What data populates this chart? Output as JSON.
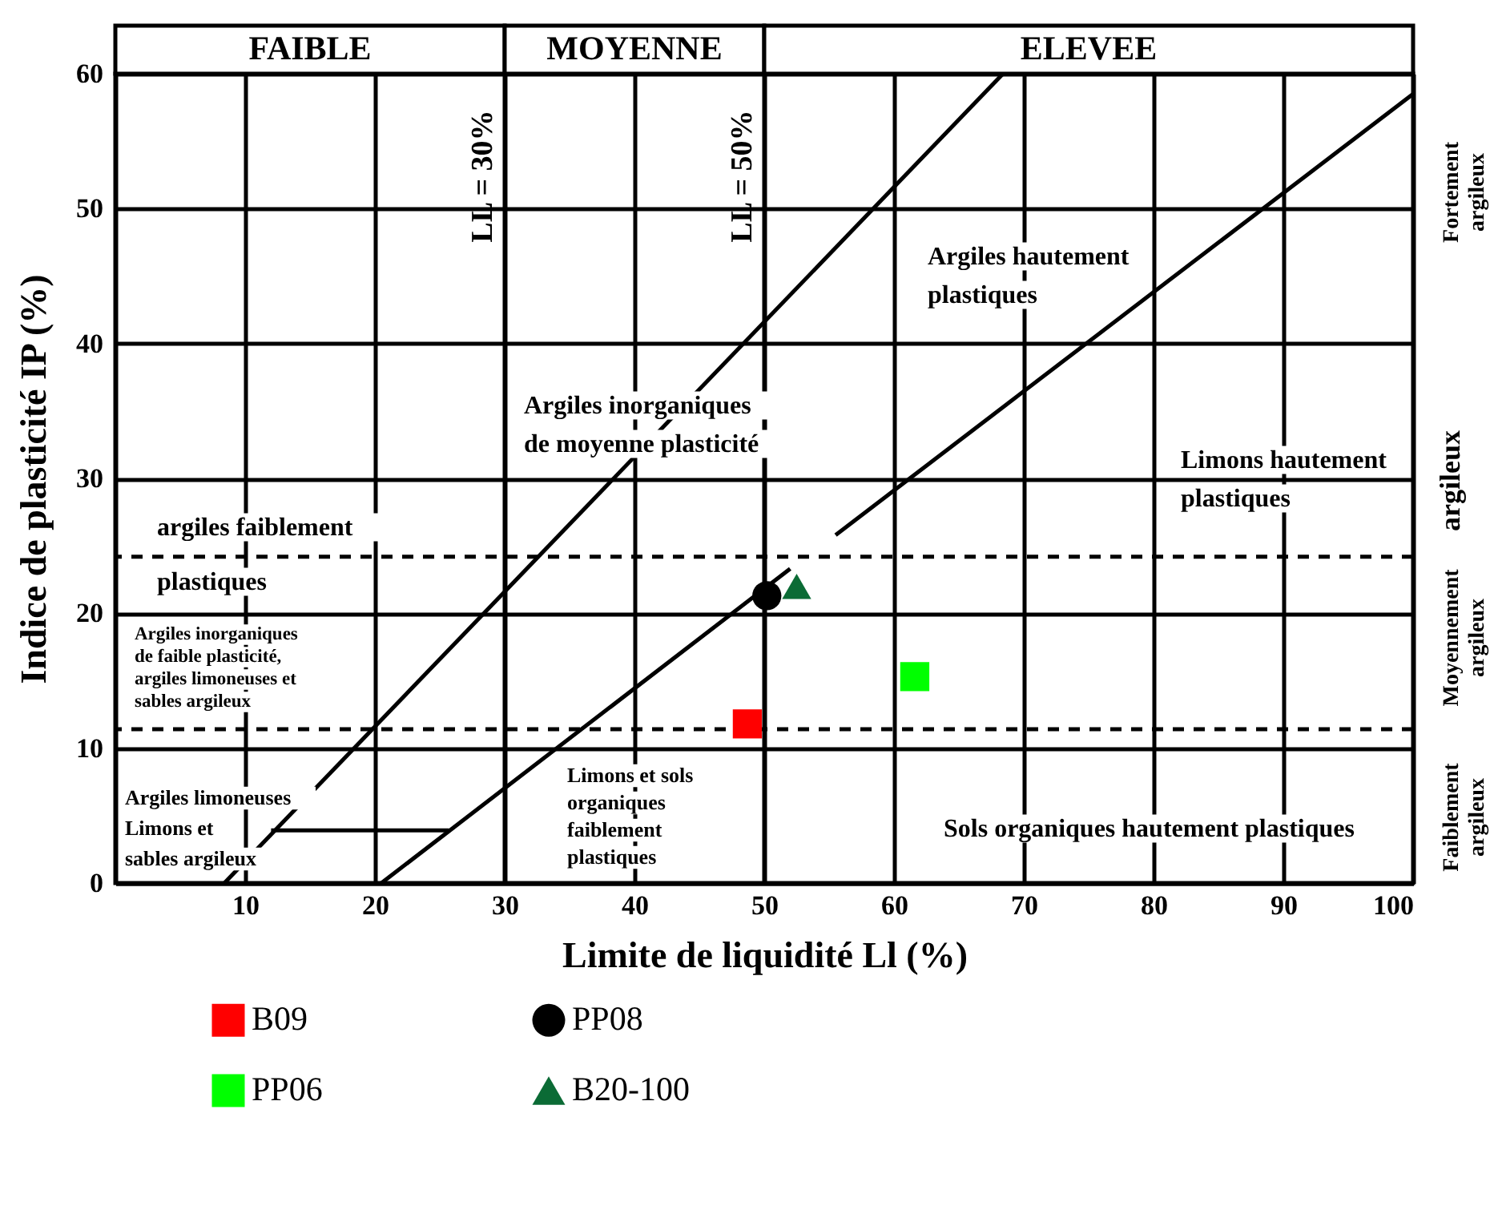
{
  "chart_data": {
    "type": "scatter",
    "xlabel": "Limite de liquidité Ll (%)",
    "ylabel": "Indice de plasticité IP (%)",
    "xlim": [
      0,
      100
    ],
    "ylim": [
      0,
      60
    ],
    "xticks": [
      10,
      20,
      30,
      40,
      50,
      60,
      70,
      80,
      90,
      100
    ],
    "yticks": [
      0,
      10,
      20,
      30,
      40,
      50,
      60
    ],
    "grid": true,
    "legend": "bottom left",
    "series": [
      {
        "type": "line",
        "color": "#000000",
        "x": [
          8.4,
          68.4
        ],
        "values": [
          0,
          60
        ]
      },
      {
        "type": "line",
        "color": "#000000",
        "x": [
          20.5,
          52
        ],
        "values": [
          0,
          23.3
        ]
      },
      {
        "type": "line",
        "color": "#000000",
        "x": [
          55.5,
          100
        ],
        "values": [
          25.8,
          58.5
        ]
      },
      {
        "type": "line",
        "color": "#000000",
        "x": [
          12,
          25.7
        ],
        "values": [
          3.9,
          3.9
        ]
      },
      {
        "name": "B09",
        "marker": "square",
        "color": "#ff0000",
        "x": [
          48.7
        ],
        "values": [
          11.8
        ]
      },
      {
        "name": "PP06",
        "marker": "square",
        "color": "#00ff00",
        "x": [
          61.6
        ],
        "values": [
          15.3
        ]
      },
      {
        "name": "PP08",
        "marker": "circle",
        "color": "#000000",
        "x": [
          50.2
        ],
        "values": [
          21.3
        ]
      },
      {
        "name": "B20-100",
        "marker": "triangle",
        "color": "#0b6b35",
        "x": [
          52.5
        ],
        "values": [
          22.0
        ]
      }
    ],
    "ref_lines": [
      {
        "axis": "x",
        "value": 30,
        "label": "LL = 30%"
      },
      {
        "axis": "x",
        "value": 50,
        "label": "LL = 50%"
      },
      {
        "axis": "y",
        "value": 24.2,
        "line_style": "dashed"
      },
      {
        "axis": "y",
        "value": 11.4,
        "line_style": "dashed"
      }
    ],
    "annotations": [
      "FAIBLE",
      "MOYENNE",
      "ELEVEE",
      "Faiblement\nargileux",
      "Moyennement\nargileux",
      "argileux",
      "Fortement\nargileux",
      "Argiles hautement\nplastiques",
      "Argiles inorganiques\nde moyenne plasticité",
      "Limons hautement\nplastiques",
      "argiles faiblement\nplastiques",
      "Argiles inorganiques\nde faible plasticité,\nargiles limoneuses et\nsables argileux",
      "Argiles limoneuses\nLimons et\nsables argileux",
      "Limons et sols\norganiques\nfaiblement\nplastiques",
      "Sols organiques hautement plastiques"
    ]
  }
}
